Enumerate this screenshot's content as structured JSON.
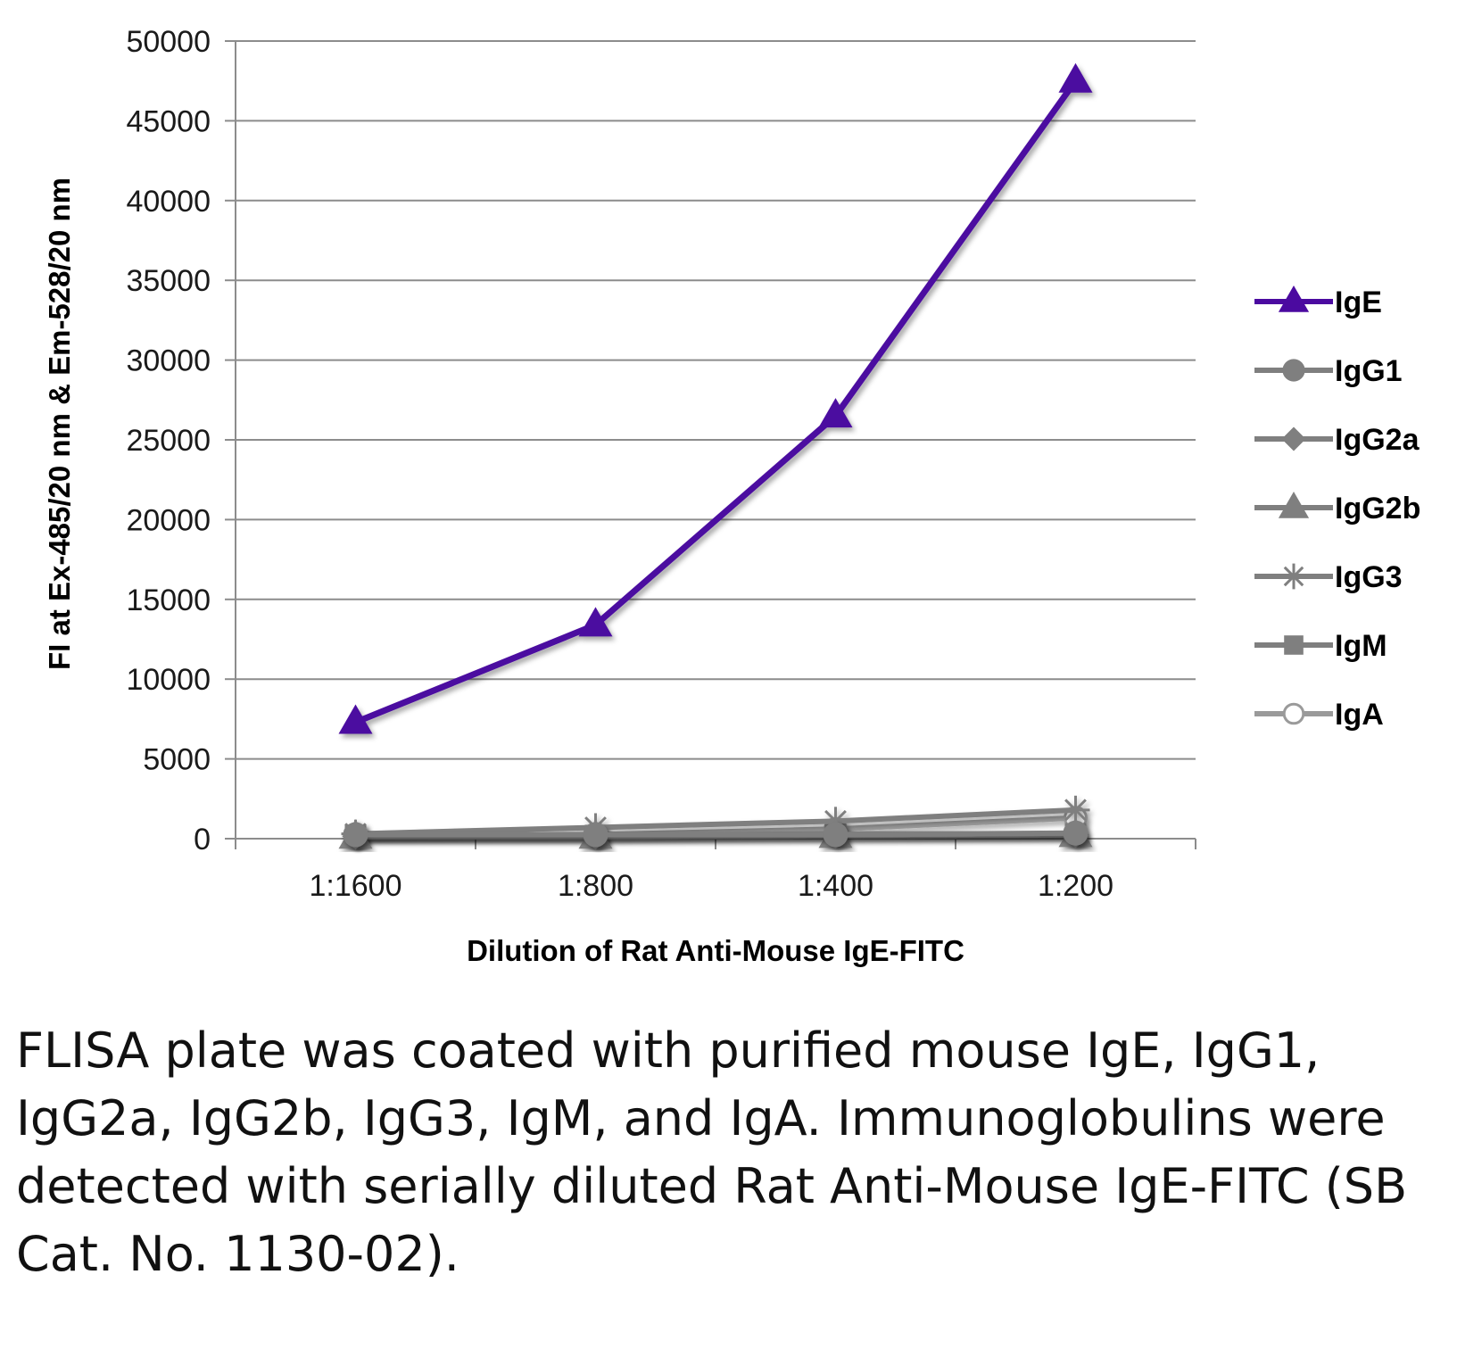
{
  "chart_data": {
    "type": "line",
    "title": "",
    "xlabel": "Dilution of Rat Anti-Mouse IgE-FITC",
    "ylabel": "FI at Ex-485/20 nm & Em-528/20 nm",
    "categories": [
      "1:1600",
      "1:800",
      "1:400",
      "1:200"
    ],
    "ylim": [
      0,
      50000
    ],
    "yticks": [
      0,
      5000,
      10000,
      15000,
      20000,
      25000,
      30000,
      35000,
      40000,
      45000,
      50000
    ],
    "grid": true,
    "legend_position": "right",
    "series": [
      {
        "name": "IgE",
        "values": [
          7300,
          13400,
          26500,
          47500
        ],
        "color": "#4b0aa0",
        "marker": "triangle"
      },
      {
        "name": "IgG1",
        "values": [
          250,
          250,
          250,
          350
        ],
        "color": "#7f7f7f",
        "marker": "circle"
      },
      {
        "name": "IgG2a",
        "values": [
          150,
          150,
          200,
          250
        ],
        "color": "#7f7f7f",
        "marker": "diamond"
      },
      {
        "name": "IgG2b",
        "values": [
          100,
          100,
          150,
          200
        ],
        "color": "#7f7f7f",
        "marker": "triangle"
      },
      {
        "name": "IgG3",
        "values": [
          300,
          700,
          1100,
          1800
        ],
        "color": "#7f7f7f",
        "marker": "star"
      },
      {
        "name": "IgM",
        "values": [
          200,
          200,
          300,
          300
        ],
        "color": "#7f7f7f",
        "marker": "square"
      },
      {
        "name": "IgA",
        "values": [
          150,
          250,
          600,
          1300
        ],
        "color": "#9a9a9a",
        "marker": "open-circle"
      }
    ]
  },
  "caption": "FLISA plate was coated with purified mouse IgE, IgG1, IgG2a, IgG2b, IgG3, IgM, and IgA. Immunoglobulins were detected with serially diluted Rat Anti-Mouse IgE-FITC (SB Cat. No. 1130-02)."
}
